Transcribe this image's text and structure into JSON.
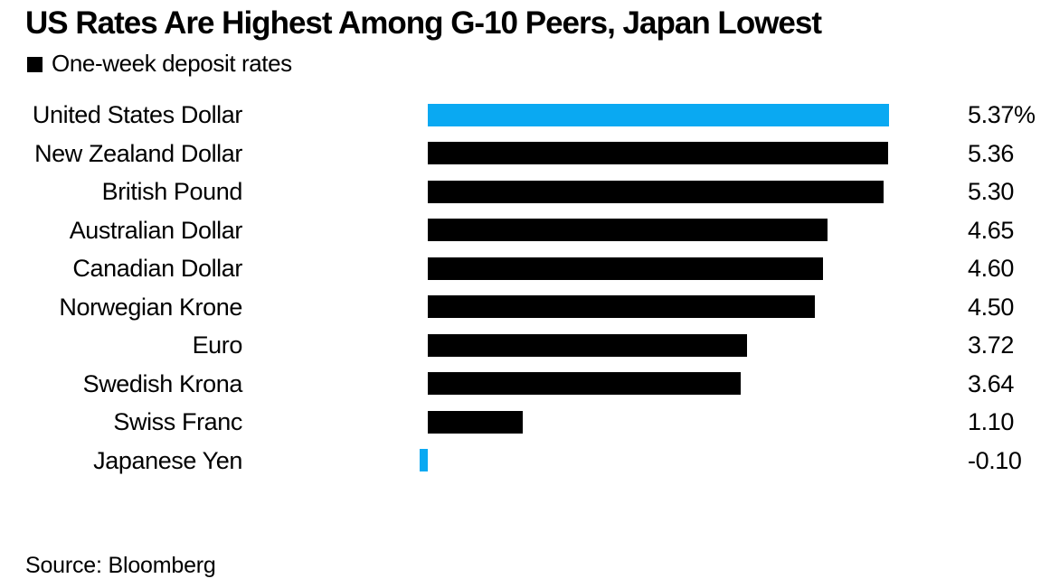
{
  "title": "US Rates Are Highest Among G-10 Peers, Japan Lowest",
  "legend": {
    "label": "One-week deposit rates",
    "swatch_color": "#000000"
  },
  "source": "Source: Bloomberg",
  "colors": {
    "background": "#ffffff",
    "text": "#000000",
    "bar_default": "#000000",
    "bar_highlight": "#0aa9f2"
  },
  "chart_data": {
    "type": "bar",
    "orientation": "horizontal",
    "title": "US Rates Are Highest Among G-10 Peers, Japan Lowest",
    "legend_label": "One-week deposit rates",
    "unit": "%",
    "xlim": [
      -0.1,
      5.37
    ],
    "grid": false,
    "legend_position": "top-left",
    "categories": [
      "United States Dollar",
      "New Zealand Dollar",
      "British Pound",
      "Australian Dollar",
      "Canadian Dollar",
      "Norwegian Krone",
      "Euro",
      "Swedish Krona",
      "Swiss Franc",
      "Japanese Yen"
    ],
    "values": [
      5.37,
      5.36,
      5.3,
      4.65,
      4.6,
      4.5,
      3.72,
      3.64,
      1.1,
      -0.1
    ],
    "value_labels": [
      "5.37%",
      "5.36",
      "5.30",
      "4.65",
      "4.60",
      "4.50",
      "3.72",
      "3.64",
      "1.10",
      "-0.10"
    ],
    "highlight_indices": [
      0,
      9
    ]
  }
}
